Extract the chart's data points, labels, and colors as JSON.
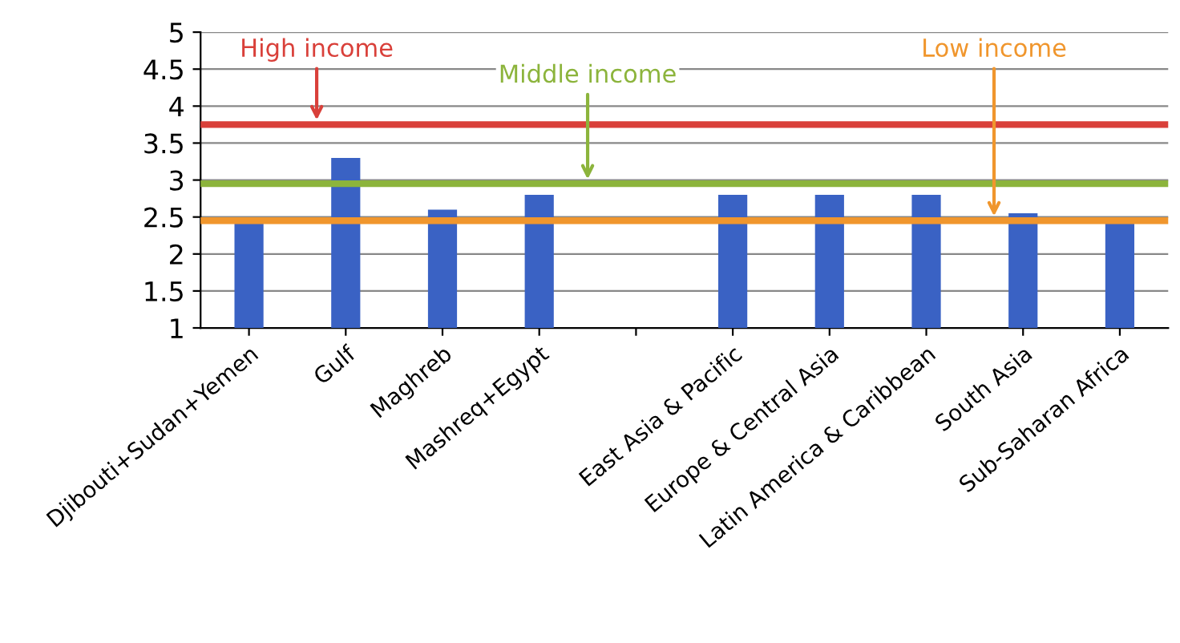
{
  "chart_data": {
    "type": "bar",
    "categories": [
      "Djibouti+Sudan+Yemen",
      "Gulf",
      "Maghreb",
      "Mashreq+Egypt",
      null,
      "East Asia & Pacific",
      "Europe & Central Asia",
      "Latin America & Caribbean",
      "South Asia",
      "Sub-Saharan Africa"
    ],
    "values": [
      2.45,
      3.3,
      2.6,
      2.8,
      null,
      2.8,
      2.8,
      2.8,
      2.55,
      2.45
    ],
    "color": "#3a62c4",
    "ylim": [
      1,
      5
    ],
    "yticks": [
      1,
      1.5,
      2,
      2.5,
      3,
      3.5,
      4,
      4.5,
      5
    ],
    "grid": "y",
    "ref_lines": [
      {
        "axis": "y",
        "value": 3.75,
        "label": "High income",
        "color": "#d9403a"
      },
      {
        "axis": "y",
        "value": 2.95,
        "label": "Middle income",
        "color": "#8cb43c"
      },
      {
        "axis": "y",
        "value": 2.45,
        "label": "Low income",
        "color": "#f0962d"
      }
    ]
  }
}
